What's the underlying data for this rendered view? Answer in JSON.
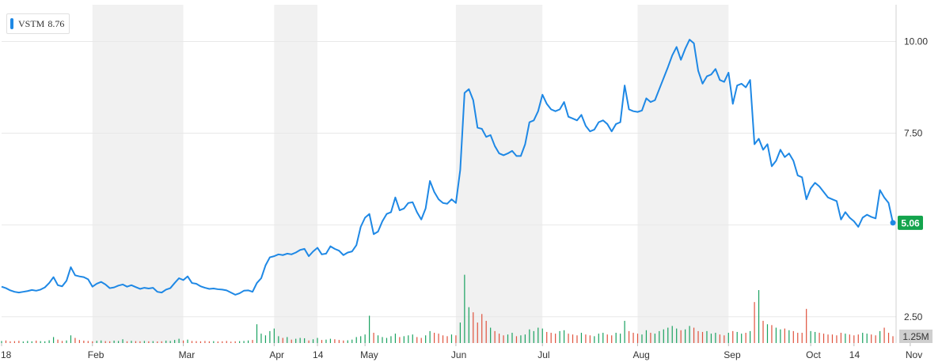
{
  "legend": {
    "symbol": "VSTM",
    "price": "8.76"
  },
  "colors": {
    "line": "#1e88e5",
    "volume_up": "#1aa260",
    "volume_down": "#e0523d",
    "band": "#f1f1f1",
    "grid": "#e8e8e8",
    "last_badge": "#14a44d",
    "volume_badge": "#cfcfcf"
  },
  "chart_data": {
    "type": "line",
    "series": [
      {
        "values": [
          3.32,
          3.28,
          3.22,
          3.18,
          3.16,
          3.18,
          3.2,
          3.23,
          3.21,
          3.24,
          3.3,
          3.42,
          3.58,
          3.36,
          3.33,
          3.48,
          3.85,
          3.63,
          3.6,
          3.58,
          3.52,
          3.32,
          3.4,
          3.45,
          3.38,
          3.28,
          3.3,
          3.35,
          3.38,
          3.32,
          3.36,
          3.31,
          3.26,
          3.29,
          3.27,
          3.29,
          3.18,
          3.16,
          3.24,
          3.28,
          3.42,
          3.55,
          3.5,
          3.6,
          3.42,
          3.4,
          3.33,
          3.29,
          3.26,
          3.27,
          3.25,
          3.24,
          3.22,
          3.16,
          3.1,
          3.14,
          3.21,
          3.22,
          3.18,
          3.42,
          3.55,
          3.9,
          4.12,
          4.15,
          4.2,
          4.18,
          4.22,
          4.2,
          4.25,
          4.32,
          4.35,
          4.15,
          4.28,
          4.38,
          4.2,
          4.22,
          4.42,
          4.35,
          4.3,
          4.18,
          4.25,
          4.28,
          4.45,
          4.95,
          5.2,
          5.3,
          4.75,
          4.82,
          5.1,
          5.3,
          5.35,
          5.75,
          5.4,
          5.45,
          5.6,
          5.62,
          5.35,
          5.15,
          5.45,
          6.2,
          5.9,
          5.7,
          5.6,
          5.58,
          5.7,
          5.6,
          6.5,
          8.6,
          8.7,
          8.4,
          7.65,
          7.62,
          7.4,
          7.45,
          7.15,
          6.95,
          6.9,
          6.95,
          7.02,
          6.88,
          6.88,
          7.2,
          7.8,
          7.85,
          8.1,
          8.55,
          8.3,
          8.15,
          8.1,
          8.15,
          8.35,
          7.95,
          7.9,
          7.85,
          8.0,
          7.7,
          7.55,
          7.6,
          7.8,
          7.85,
          7.75,
          7.55,
          7.75,
          7.8,
          8.8,
          8.15,
          8.1,
          8.08,
          8.12,
          8.45,
          8.35,
          8.4,
          8.7,
          9.0,
          9.3,
          9.62,
          9.85,
          9.5,
          9.8,
          10.05,
          9.95,
          9.2,
          8.85,
          9.05,
          9.1,
          9.25,
          8.95,
          8.9,
          9.15,
          8.3,
          8.8,
          8.85,
          8.75,
          8.95,
          7.2,
          7.35,
          7.05,
          7.2,
          6.6,
          6.75,
          7.05,
          6.85,
          6.95,
          6.75,
          6.35,
          6.3,
          5.7,
          6.0,
          6.15,
          6.05,
          5.9,
          5.75,
          5.7,
          5.65,
          5.15,
          5.35,
          5.2,
          5.1,
          4.95,
          5.2,
          5.28,
          5.22,
          5.18,
          5.95,
          5.75,
          5.6,
          5.06
        ]
      }
    ],
    "volume": [
      0.12,
      0.15,
      0.1,
      0.11,
      0.13,
      0.09,
      0.12,
      0.1,
      0.14,
      0.11,
      0.1,
      0.16,
      0.35,
      0.2,
      0.12,
      0.15,
      0.45,
      0.3,
      0.18,
      0.14,
      0.12,
      0.1,
      0.13,
      0.15,
      0.11,
      0.1,
      0.14,
      0.12,
      0.22,
      0.1,
      0.13,
      0.11,
      0.1,
      0.12,
      0.1,
      0.11,
      0.09,
      0.1,
      0.14,
      0.12,
      0.18,
      0.25,
      0.15,
      0.2,
      0.12,
      0.11,
      0.1,
      0.12,
      0.1,
      0.11,
      0.09,
      0.1,
      0.12,
      0.08,
      0.1,
      0.11,
      0.12,
      0.15,
      0.18,
      1.1,
      0.55,
      0.45,
      0.7,
      0.85,
      0.4,
      0.3,
      0.35,
      0.2,
      0.25,
      0.3,
      0.28,
      0.15,
      0.22,
      0.3,
      0.18,
      0.2,
      0.25,
      0.22,
      0.18,
      0.15,
      0.16,
      0.2,
      0.35,
      0.4,
      0.5,
      1.6,
      0.6,
      0.45,
      0.35,
      0.3,
      0.4,
      0.55,
      0.35,
      0.4,
      0.45,
      0.5,
      0.35,
      0.3,
      0.45,
      0.7,
      0.6,
      0.55,
      0.45,
      0.4,
      0.5,
      0.45,
      1.2,
      4.0,
      2.1,
      1.8,
      1.2,
      1.7,
      1.3,
      0.9,
      0.7,
      0.55,
      0.45,
      0.5,
      0.6,
      0.4,
      0.45,
      0.5,
      0.8,
      0.7,
      0.9,
      0.85,
      0.65,
      0.6,
      0.55,
      0.7,
      0.75,
      0.55,
      0.5,
      0.45,
      0.6,
      0.5,
      0.45,
      0.4,
      0.55,
      0.6,
      0.5,
      0.45,
      0.6,
      0.55,
      1.3,
      0.7,
      0.6,
      0.55,
      0.5,
      0.75,
      0.6,
      0.55,
      0.7,
      0.8,
      0.9,
      1.0,
      0.85,
      0.75,
      0.8,
      1.0,
      0.9,
      0.7,
      0.65,
      0.7,
      0.55,
      0.6,
      0.5,
      0.45,
      0.6,
      0.7,
      0.65,
      0.55,
      0.6,
      0.7,
      2.4,
      3.1,
      1.3,
      1.1,
      1.05,
      0.9,
      0.8,
      0.85,
      0.75,
      0.7,
      0.6,
      0.6,
      2.0,
      0.7,
      0.65,
      0.6,
      0.55,
      0.5,
      0.5,
      0.45,
      0.6,
      0.55,
      0.5,
      0.45,
      0.5,
      0.6,
      0.55,
      0.5,
      0.45,
      0.7,
      0.9,
      0.6,
      0.4
    ],
    "ylim": [
      2.0,
      11.0
    ],
    "y_ticks": [
      "2.50",
      "7.50",
      "10.00"
    ],
    "x_tick_labels": [
      "18",
      "Feb",
      "Mar",
      "Apr",
      "14",
      "May",
      "Jun",
      "Jul",
      "Aug",
      "Sep",
      "Oct",
      "14",
      "Nov"
    ],
    "x_tick_index": [
      0,
      21,
      42,
      63,
      73,
      84,
      105,
      125,
      147,
      168,
      187,
      197,
      210
    ],
    "bands": [
      [
        21,
        42
      ],
      [
        63,
        73
      ],
      [
        105,
        125
      ],
      [
        147,
        168
      ],
      [
        210,
        223
      ]
    ],
    "last_price_label": "5.06",
    "volume_label": "1.25M",
    "volume_max": 5.0,
    "grid": true
  }
}
